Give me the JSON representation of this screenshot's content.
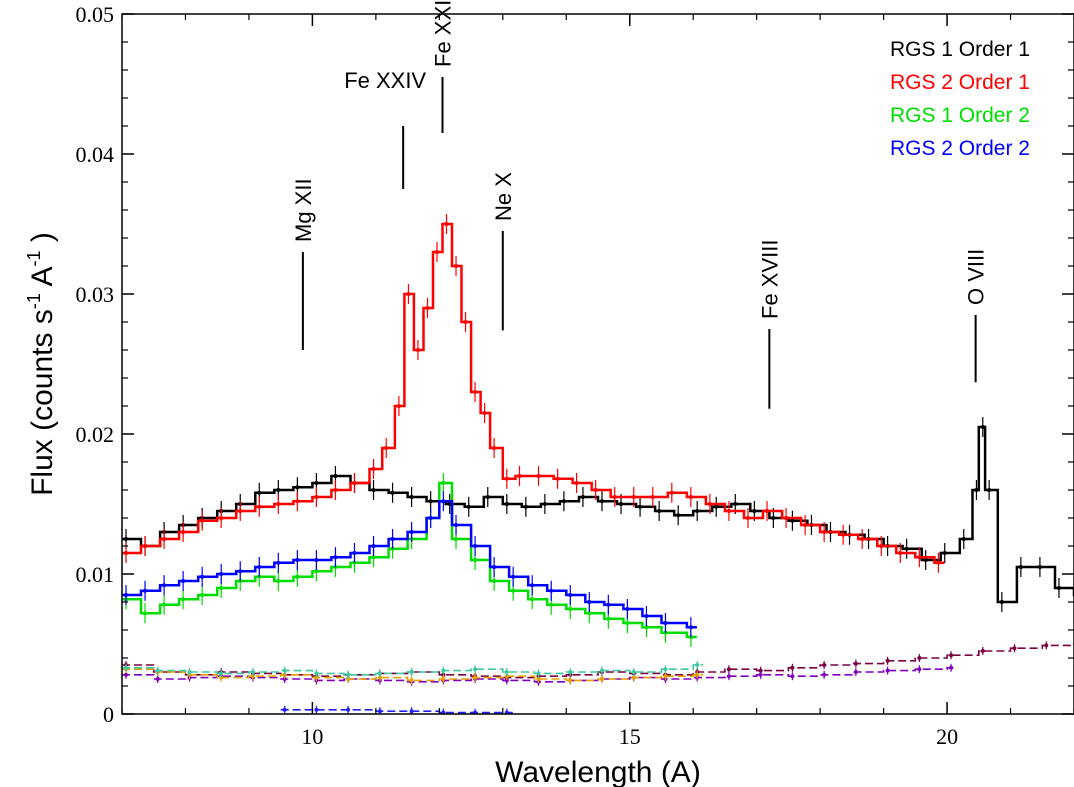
{
  "chart_data": {
    "type": "line",
    "xlabel": "Wavelength (A)",
    "ylabel_main": "Flux  (counts s",
    "ylabel_sup1": "-1",
    "ylabel_mid": " A",
    "ylabel_sup2": "-1",
    "ylabel_end": " )",
    "xlim": [
      7.0,
      22.0
    ],
    "ylim": [
      0,
      0.05
    ],
    "x_ticks": [
      10,
      15,
      20
    ],
    "x_tick_labels": [
      "10",
      "15",
      "20"
    ],
    "y_ticks": [
      0,
      0.01,
      0.02,
      0.03,
      0.04,
      0.05
    ],
    "y_tick_labels": [
      "0",
      "0.01",
      "0.02",
      "0.03",
      "0.04",
      "0.05"
    ],
    "grid": false,
    "legend_position": "top-right",
    "legend": [
      {
        "label": "RGS 1 Order 1",
        "color": "#000000"
      },
      {
        "label": "RGS 2 Order 1",
        "color": "#ff0000"
      },
      {
        "label": "RGS 1 Order 2",
        "color": "#00dd00"
      },
      {
        "label": "RGS 2 Order 2",
        "color": "#0000ff"
      }
    ],
    "line_annotations": [
      {
        "label": "Mg XII",
        "x": 9.85,
        "y_bottom": 0.026,
        "y_top": 0.033
      },
      {
        "label": "Fe XXIV",
        "x": 11.43,
        "y_bottom": 0.0375,
        "y_top": 0.042
      },
      {
        "label": "Fe XXIII",
        "x": 12.05,
        "y_bottom": 0.0415,
        "y_top": 0.0455
      },
      {
        "label": "Ne X",
        "x": 13.0,
        "y_bottom": 0.0274,
        "y_top": 0.0345
      },
      {
        "label": "Fe XVIII",
        "x": 17.2,
        "y_bottom": 0.0218,
        "y_top": 0.0275
      },
      {
        "label": "O VIII",
        "x": 20.45,
        "y_bottom": 0.0237,
        "y_top": 0.0285
      }
    ],
    "series": [
      {
        "name": "RGS 1 Order 1",
        "color": "#000000",
        "x": [
          7.0,
          7.3,
          7.6,
          7.9,
          8.2,
          8.5,
          8.8,
          9.1,
          9.4,
          9.7,
          10.0,
          10.3,
          10.6,
          10.9,
          11.2,
          11.5,
          11.8,
          12.1,
          12.4,
          12.7,
          13.0,
          13.3,
          13.6,
          13.9,
          14.2,
          14.5,
          14.8,
          15.1,
          15.4,
          15.7,
          16.0,
          16.3,
          16.6,
          16.9,
          17.2,
          17.5,
          17.8,
          18.1,
          18.4,
          18.7,
          19.0,
          19.3,
          19.6,
          19.9,
          20.2,
          20.4,
          20.5,
          20.6,
          20.8,
          21.1,
          21.4,
          21.7,
          22.0
        ],
        "y": [
          0.0125,
          0.012,
          0.013,
          0.0135,
          0.014,
          0.0145,
          0.015,
          0.0158,
          0.016,
          0.0162,
          0.0165,
          0.017,
          0.0165,
          0.016,
          0.0158,
          0.0155,
          0.0152,
          0.015,
          0.0148,
          0.0155,
          0.015,
          0.0148,
          0.015,
          0.0152,
          0.0155,
          0.0152,
          0.015,
          0.0148,
          0.0145,
          0.0142,
          0.0145,
          0.0148,
          0.015,
          0.0145,
          0.014,
          0.0138,
          0.0135,
          0.013,
          0.0128,
          0.0125,
          0.012,
          0.0118,
          0.011,
          0.0115,
          0.0125,
          0.016,
          0.0205,
          0.016,
          0.008,
          0.0105,
          0.0105,
          0.009,
          0.0085
        ]
      },
      {
        "name": "RGS 2 Order 1",
        "color": "#ff0000",
        "x": [
          7.0,
          7.3,
          7.6,
          7.9,
          8.2,
          8.5,
          8.8,
          9.1,
          9.4,
          9.7,
          10.0,
          10.3,
          10.6,
          10.9,
          11.1,
          11.3,
          11.45,
          11.6,
          11.75,
          11.9,
          12.05,
          12.2,
          12.35,
          12.5,
          12.65,
          12.8,
          13.0,
          13.2,
          13.5,
          13.8,
          14.1,
          14.4,
          14.7,
          15.0,
          15.3,
          15.6,
          15.9,
          16.2,
          16.5,
          16.8,
          17.1,
          17.4,
          17.7,
          18.0,
          18.3,
          18.6,
          18.9,
          19.2,
          19.5,
          19.8
        ],
        "y": [
          0.0115,
          0.012,
          0.0125,
          0.013,
          0.0138,
          0.014,
          0.0145,
          0.0148,
          0.015,
          0.0152,
          0.0155,
          0.016,
          0.0165,
          0.0175,
          0.019,
          0.022,
          0.03,
          0.026,
          0.029,
          0.033,
          0.035,
          0.032,
          0.028,
          0.023,
          0.0215,
          0.019,
          0.0168,
          0.017,
          0.017,
          0.0168,
          0.0165,
          0.016,
          0.0155,
          0.0155,
          0.0155,
          0.0158,
          0.0155,
          0.015,
          0.0145,
          0.014,
          0.0145,
          0.014,
          0.0135,
          0.013,
          0.0128,
          0.0125,
          0.012,
          0.0115,
          0.0112,
          0.0108
        ]
      },
      {
        "name": "RGS 1 Order 2",
        "color": "#00dd00",
        "x": [
          7.0,
          7.3,
          7.6,
          7.9,
          8.2,
          8.5,
          8.8,
          9.1,
          9.4,
          9.7,
          10.0,
          10.3,
          10.6,
          10.9,
          11.2,
          11.5,
          11.8,
          12.0,
          12.2,
          12.5,
          12.8,
          13.1,
          13.4,
          13.7,
          14.0,
          14.3,
          14.6,
          14.9,
          15.2,
          15.5,
          15.9
        ],
        "y": [
          0.0082,
          0.0072,
          0.0078,
          0.0082,
          0.0085,
          0.009,
          0.0095,
          0.0098,
          0.0095,
          0.0098,
          0.0102,
          0.0105,
          0.0108,
          0.0112,
          0.0118,
          0.0125,
          0.014,
          0.0165,
          0.0125,
          0.011,
          0.0095,
          0.0088,
          0.0082,
          0.0078,
          0.0075,
          0.0072,
          0.0068,
          0.0065,
          0.0062,
          0.0058,
          0.0055
        ]
      },
      {
        "name": "RGS 2 Order 2",
        "color": "#0000ff",
        "x": [
          7.0,
          7.3,
          7.6,
          7.9,
          8.2,
          8.5,
          8.8,
          9.1,
          9.4,
          9.7,
          10.0,
          10.3,
          10.6,
          10.9,
          11.2,
          11.5,
          11.8,
          12.0,
          12.2,
          12.5,
          12.8,
          13.1,
          13.4,
          13.7,
          14.0,
          14.3,
          14.6,
          14.9,
          15.2,
          15.5,
          15.9
        ],
        "y": [
          0.0085,
          0.0088,
          0.0092,
          0.0095,
          0.0098,
          0.01,
          0.0102,
          0.0105,
          0.0108,
          0.011,
          0.011,
          0.0112,
          0.0115,
          0.012,
          0.0125,
          0.013,
          0.014,
          0.0152,
          0.0135,
          0.012,
          0.0105,
          0.0098,
          0.0092,
          0.0088,
          0.0085,
          0.008,
          0.0078,
          0.0075,
          0.007,
          0.0065,
          0.0062
        ]
      },
      {
        "name": "",
        "color": "#7a0040",
        "x": [
          7.0,
          7.5,
          8.0,
          8.5,
          9.0,
          9.5,
          10.0,
          10.5,
          11.0,
          11.5,
          12.0,
          12.5,
          13.0,
          13.5,
          14.0,
          14.5,
          15.0,
          15.5,
          16.0,
          16.5,
          17.0,
          17.5,
          18.0,
          18.5,
          19.0,
          19.5,
          20.0,
          20.5,
          21.0,
          21.5,
          22.0
        ],
        "y": [
          0.0035,
          0.003,
          0.0028,
          0.003,
          0.0029,
          0.0028,
          0.0027,
          0.0028,
          0.0029,
          0.003,
          0.0028,
          0.0027,
          0.0026,
          0.0027,
          0.0028,
          0.003,
          0.0029,
          0.0028,
          0.003,
          0.0032,
          0.0031,
          0.0033,
          0.0035,
          0.0036,
          0.0038,
          0.004,
          0.0042,
          0.0045,
          0.0047,
          0.0049,
          0.005
        ]
      },
      {
        "name": "",
        "color": "#8000c0",
        "x": [
          7.0,
          7.5,
          8.0,
          8.5,
          9.0,
          9.5,
          10.0,
          10.5,
          11.0,
          11.5,
          12.0,
          12.5,
          13.0,
          13.5,
          14.0,
          14.5,
          15.0,
          15.5,
          16.0,
          16.5,
          17.0,
          17.5,
          18.0,
          18.5,
          19.0,
          19.5,
          20.0
        ],
        "y": [
          0.0028,
          0.0025,
          0.0026,
          0.0027,
          0.0026,
          0.0025,
          0.0024,
          0.0025,
          0.0024,
          0.0023,
          0.0024,
          0.0025,
          0.0024,
          0.0023,
          0.0024,
          0.0025,
          0.0026,
          0.0025,
          0.0026,
          0.0027,
          0.0028,
          0.0027,
          0.0028,
          0.003,
          0.0031,
          0.0032,
          0.0033
        ]
      },
      {
        "name": "",
        "color": "#e8a000",
        "x": [
          7.0,
          7.5,
          8.0,
          8.5,
          9.0,
          9.5,
          10.0,
          10.5,
          11.0,
          11.5,
          12.0,
          12.5,
          13.0,
          13.5,
          14.0,
          14.5,
          15.0,
          15.5,
          16.0
        ],
        "y": [
          0.0032,
          0.003,
          0.0028,
          0.0026,
          0.0027,
          0.0028,
          0.0026,
          0.0025,
          0.0026,
          0.0024,
          0.0025,
          0.0026,
          0.0027,
          0.0025,
          0.0024,
          0.0025,
          0.0026,
          0.0027,
          0.0028
        ]
      },
      {
        "name": "",
        "color": "#40c8a0",
        "x": [
          7.0,
          7.5,
          8.0,
          8.5,
          9.0,
          9.5,
          10.0,
          10.5,
          11.0,
          11.5,
          12.0,
          12.5,
          13.0,
          13.5,
          14.0,
          14.5,
          15.0,
          15.5,
          16.0
        ],
        "y": [
          0.0033,
          0.0031,
          0.003,
          0.0029,
          0.003,
          0.0031,
          0.0029,
          0.0028,
          0.0029,
          0.003,
          0.0031,
          0.0032,
          0.003,
          0.0029,
          0.003,
          0.0031,
          0.003,
          0.0032,
          0.0035
        ]
      },
      {
        "name": "",
        "color": "#2020ff",
        "x": [
          9.5,
          10.0,
          10.5,
          11.0,
          11.5,
          12.0,
          12.5,
          13.0
        ],
        "y": [
          0.0003,
          0.0003,
          0.0003,
          0.0002,
          0.0002,
          0.0001,
          0.0001,
          0.0001
        ]
      }
    ]
  }
}
